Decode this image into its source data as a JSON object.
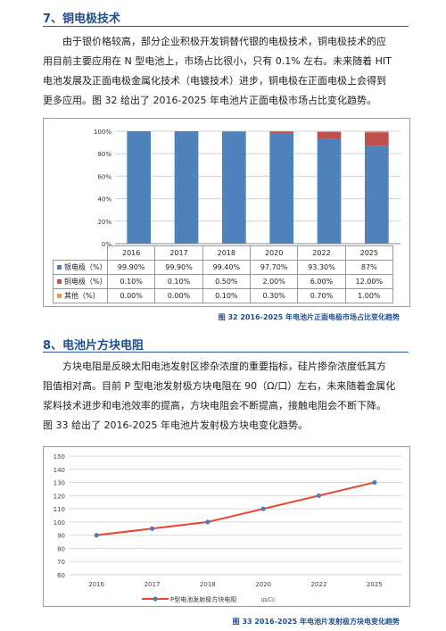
{
  "section7": {
    "heading": "7、铜电极技术",
    "paragraph_lines": [
      "由于银价格较高，部分企业积极开发铜替代银的电极技术，铜电极技术的应",
      "用目前主要应用在 N 型电池上，市场占比很小，只有 0.1%  左右。未来随着 HIT",
      "电池发展及正面电极金属化技术（电镀技术）进步，铜电极在正面电极上会得到",
      "更多应用。图 32 给出了 2016-2025 年电池片正面电极市场占比变化趋势。"
    ],
    "caption": "图 32 2016-2025 年电池片正面电极市场占比变化趋势"
  },
  "section8": {
    "heading": "8、电池片方块电阻",
    "paragraph_lines": [
      "方块电阻是反映太阳电池发射区掺杂浓度的重要指标，硅片掺杂浓度低其方",
      "阻值相对高。目前 P 型电池发射极方块电阻在 90（Ω/口）左右，未来随着金属化",
      "浆料技术进步和电池效率的提高，方块电阻会不断提高，接触电阻会不断下降。",
      "图 33 给出了 2016-2025 年电池片发射极方块电变化趋势。"
    ],
    "caption": "图 33 2016-2025 年电池片发射极方块电变化趋势"
  },
  "colors": {
    "silver": "#4f81bd",
    "copper": "#c0504d",
    "other": "#f79646",
    "line": "#e8472a",
    "marker": "#4a7ebb"
  },
  "chart_data": [
    {
      "type": "bar",
      "stacked": true,
      "categories": [
        "2016",
        "2017",
        "2018",
        "2020",
        "2022",
        "2025"
      ],
      "series": [
        {
          "name": "银电极（%）",
          "values": [
            99.9,
            99.9,
            99.4,
            97.7,
            93.3,
            87
          ],
          "labels": [
            "99.90%",
            "99.90%",
            "99.40%",
            "97.70%",
            "93.30%",
            "87%"
          ]
        },
        {
          "name": "铜电极（%）",
          "values": [
            0.1,
            0.1,
            0.5,
            2.0,
            6.0,
            12.0
          ],
          "labels": [
            "0.10%",
            "0.10%",
            "0.50%",
            "2.00%",
            "6.00%",
            "12.00%"
          ]
        },
        {
          "name": "其他（%）",
          "values": [
            0.0,
            0.0,
            0.1,
            0.3,
            0.7,
            1.0
          ],
          "labels": [
            "0.00%",
            "0.00%",
            "0.10%",
            "0.30%",
            "0.70%",
            "1.00%"
          ]
        }
      ],
      "y_ticks": [
        "0%",
        "20%",
        "40%",
        "60%",
        "80%",
        "100%"
      ],
      "ylim": [
        0,
        100
      ],
      "grid": true,
      "legend": "data-table"
    },
    {
      "type": "line",
      "x": [
        "2016",
        "2017",
        "2018",
        "2020",
        "2022",
        "2025"
      ],
      "series": [
        {
          "name": "P型电池发射极方块电阻",
          "unit": "（Ω/口）",
          "values": [
            90,
            95,
            100,
            110,
            120,
            130
          ]
        }
      ],
      "y_ticks": [
        "60",
        "70",
        "80",
        "90",
        "100",
        "110",
        "120",
        "130",
        "140",
        "150"
      ],
      "ylim": [
        60,
        150
      ],
      "grid": true,
      "legend": "bottom"
    }
  ]
}
